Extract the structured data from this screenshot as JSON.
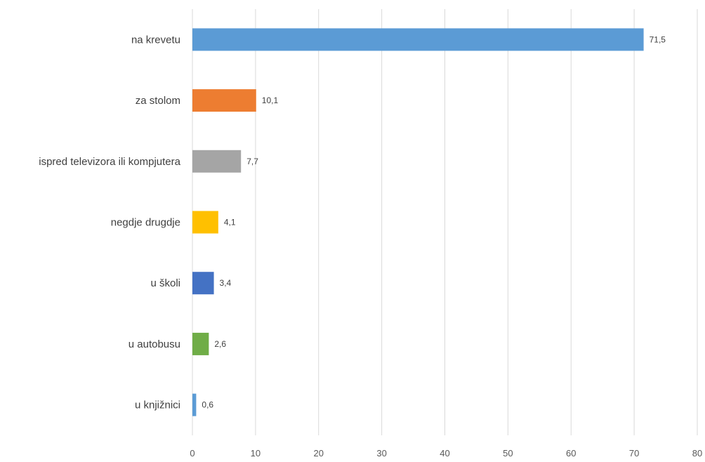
{
  "chart_data": {
    "type": "bar",
    "orientation": "horizontal",
    "categories": [
      "na krevetu",
      "za stolom",
      "ispred televizora ili kompjutera",
      "negdje drugdje",
      "u školi",
      "u autobusu",
      "u knjižnici"
    ],
    "values": [
      71.5,
      10.1,
      7.7,
      4.1,
      3.4,
      2.6,
      0.6
    ],
    "data_labels": [
      "71,5",
      "10,1",
      "7,7",
      "4,1",
      "3,4",
      "2,6",
      "0,6"
    ],
    "colors": [
      "#5b9bd5",
      "#ed7d31",
      "#a5a5a5",
      "#ffc000",
      "#4472c4",
      "#70ad47",
      "#5b9bd5"
    ],
    "xlim": [
      0,
      80
    ],
    "x_ticks": [
      0,
      10,
      20,
      30,
      40,
      50,
      60,
      70,
      80
    ],
    "x_tick_labels": [
      "0",
      "10",
      "20",
      "30",
      "40",
      "50",
      "60",
      "70",
      "80"
    ],
    "grid": "vertical",
    "legend": "none",
    "title": "",
    "xlabel": "",
    "ylabel": ""
  }
}
